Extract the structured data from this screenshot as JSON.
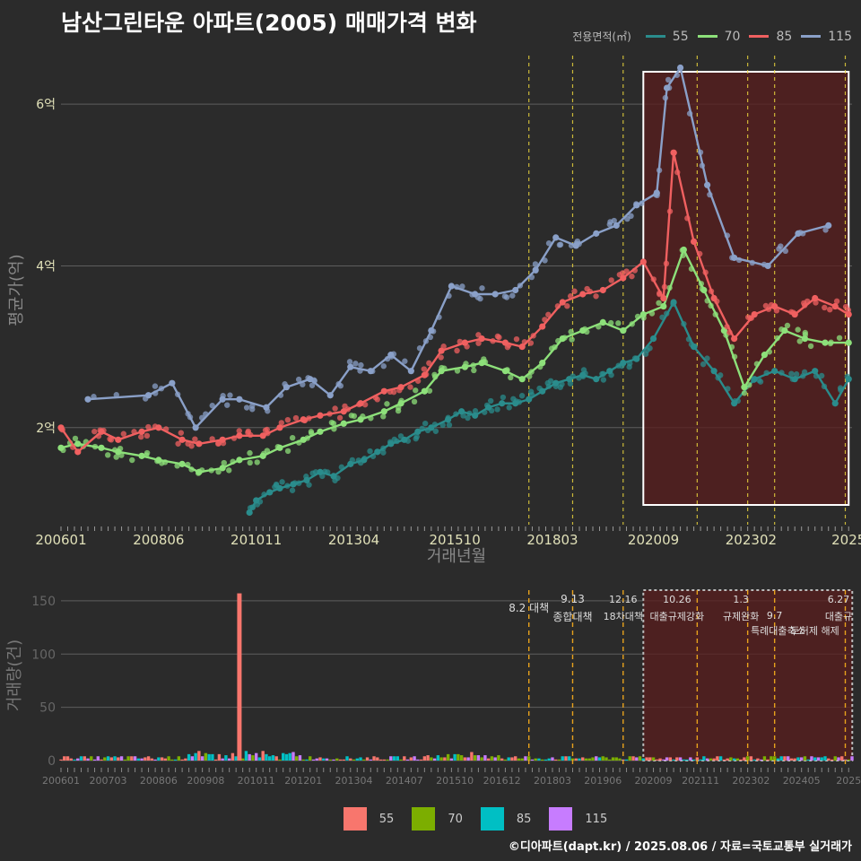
{
  "title": "남산그린타운 아파트(2005) 매매가격 변화",
  "footer": "©디아파트(dapt.kr) / 2025.08.06 / 자료=국토교통부 실거래가",
  "colors": {
    "background": "#2b2b2b",
    "grid": "#5e5e5e",
    "s55": "#2a8c8c",
    "s70": "#8de07a",
    "s85": "#f06060",
    "s115": "#8aa0c8",
    "bar55": "#f8766d",
    "bar70": "#7cae00",
    "bar85": "#00bfc4",
    "bar115": "#c77cff",
    "highlight": "#5a1e1e",
    "policy_line": "#e8d23c"
  },
  "legend_top": {
    "title": "전용면적(㎡)",
    "items": [
      "55",
      "70",
      "85",
      "115"
    ]
  },
  "legend_bottom": {
    "items": [
      "55",
      "70",
      "85",
      "115"
    ]
  },
  "chart_data": [
    {
      "type": "line",
      "xlabel": "거래년월",
      "ylabel": "평균가(억)",
      "x_ticks": [
        "200601",
        "200806",
        "201011",
        "201304",
        "201510",
        "201803",
        "202009",
        "202302",
        "2025"
      ],
      "y_ticks": [
        "2억",
        "4억",
        "6억"
      ],
      "ylim": [
        0.8,
        6.6
      ],
      "xlim": [
        "2006-01",
        "2025-08"
      ],
      "highlight_range": [
        "2020-06",
        "2025-07"
      ],
      "series": [
        {
          "name": "55",
          "x": [
            "2010-09",
            "2010-11",
            "2011-03",
            "2011-06",
            "2011-10",
            "2012-02",
            "2012-06",
            "2012-10",
            "2013-03",
            "2013-07",
            "2013-11",
            "2014-03",
            "2014-07",
            "2014-11",
            "2015-03",
            "2015-08",
            "2015-12",
            "2016-04",
            "2016-08",
            "2016-12",
            "2017-04",
            "2017-08",
            "2017-12",
            "2018-04",
            "2018-08",
            "2018-12",
            "2019-04",
            "2019-08",
            "2019-12",
            "2020-04",
            "2020-09",
            "2021-03",
            "2021-09",
            "2022-03",
            "2022-09",
            "2023-03",
            "2023-09",
            "2024-03",
            "2024-09",
            "2025-03",
            "2025-07"
          ],
          "values": [
            0.95,
            1.1,
            1.2,
            1.25,
            1.3,
            1.35,
            1.45,
            1.4,
            1.55,
            1.6,
            1.7,
            1.8,
            1.85,
            1.95,
            2.0,
            2.1,
            2.2,
            2.15,
            2.25,
            2.3,
            2.3,
            2.35,
            2.45,
            2.55,
            2.6,
            2.65,
            2.6,
            2.7,
            2.8,
            2.85,
            3.1,
            3.55,
            3.0,
            2.7,
            2.3,
            2.6,
            2.7,
            2.6,
            2.7,
            2.3,
            2.6
          ]
        },
        {
          "name": "70",
          "x": [
            "2006-01",
            "2006-06",
            "2007-01",
            "2007-06",
            "2008-01",
            "2008-06",
            "2009-01",
            "2009-06",
            "2010-01",
            "2010-06",
            "2011-01",
            "2011-06",
            "2012-01",
            "2012-06",
            "2013-01",
            "2013-06",
            "2014-01",
            "2014-06",
            "2015-01",
            "2015-06",
            "2016-01",
            "2016-06",
            "2017-01",
            "2017-06",
            "2017-12",
            "2018-06",
            "2018-12",
            "2019-06",
            "2019-12",
            "2020-06",
            "2020-12",
            "2021-06",
            "2021-12",
            "2022-06",
            "2022-12",
            "2023-06",
            "2023-12",
            "2024-06",
            "2024-12",
            "2025-07"
          ],
          "values": [
            1.75,
            1.8,
            1.75,
            1.7,
            1.65,
            1.6,
            1.55,
            1.45,
            1.5,
            1.6,
            1.65,
            1.75,
            1.85,
            1.95,
            2.05,
            2.1,
            2.2,
            2.3,
            2.45,
            2.7,
            2.75,
            2.8,
            2.7,
            2.6,
            2.8,
            3.1,
            3.2,
            3.3,
            3.2,
            3.4,
            3.5,
            4.2,
            3.7,
            3.2,
            2.5,
            2.9,
            3.2,
            3.1,
            3.05,
            3.05
          ]
        },
        {
          "name": "85",
          "x": [
            "2006-01",
            "2006-06",
            "2007-01",
            "2007-06",
            "2008-01",
            "2008-06",
            "2009-01",
            "2009-06",
            "2010-01",
            "2010-06",
            "2011-01",
            "2011-06",
            "2012-01",
            "2012-06",
            "2013-01",
            "2013-06",
            "2014-01",
            "2014-06",
            "2015-01",
            "2015-06",
            "2016-01",
            "2016-06",
            "2017-01",
            "2017-06",
            "2017-12",
            "2018-06",
            "2018-12",
            "2019-06",
            "2019-12",
            "2020-06",
            "2020-12",
            "2021-03",
            "2021-09",
            "2022-03",
            "2022-09",
            "2023-03",
            "2023-09",
            "2024-03",
            "2024-09",
            "2025-03",
            "2025-07"
          ],
          "values": [
            2.0,
            1.7,
            1.95,
            1.85,
            1.95,
            2.0,
            1.85,
            1.8,
            1.85,
            1.9,
            1.9,
            2.0,
            2.1,
            2.15,
            2.2,
            2.3,
            2.45,
            2.5,
            2.65,
            2.95,
            3.05,
            3.1,
            3.05,
            3.0,
            3.25,
            3.55,
            3.65,
            3.7,
            3.85,
            4.05,
            3.6,
            5.4,
            4.3,
            3.6,
            3.1,
            3.4,
            3.5,
            3.4,
            3.6,
            3.5,
            3.4
          ]
        },
        {
          "name": "115",
          "x": [
            "2006-09",
            "2008-03",
            "2008-10",
            "2009-05",
            "2010-01",
            "2010-06",
            "2011-02",
            "2011-08",
            "2012-03",
            "2012-09",
            "2013-03",
            "2013-09",
            "2014-03",
            "2014-09",
            "2015-03",
            "2015-09",
            "2016-04",
            "2016-10",
            "2017-04",
            "2017-10",
            "2018-04",
            "2018-10",
            "2019-04",
            "2019-10",
            "2020-04",
            "2020-10",
            "2021-01",
            "2021-05",
            "2022-01",
            "2022-09",
            "2023-07",
            "2024-04",
            "2025-01"
          ],
          "values": [
            2.35,
            2.4,
            2.55,
            2.0,
            2.35,
            2.35,
            2.25,
            2.5,
            2.6,
            2.4,
            2.75,
            2.7,
            2.9,
            2.7,
            3.2,
            3.75,
            3.65,
            3.65,
            3.7,
            3.95,
            4.35,
            4.25,
            4.4,
            4.5,
            4.75,
            4.9,
            6.2,
            6.45,
            5.0,
            4.1,
            4.0,
            4.4,
            4.5
          ]
        }
      ]
    },
    {
      "type": "bar",
      "xlabel": "",
      "ylabel": "거래량(건)",
      "x_ticks": [
        "200601",
        "200703",
        "200806",
        "200908",
        "201011",
        "201201",
        "201304",
        "201407",
        "201510",
        "201612",
        "201803",
        "201906",
        "202009",
        "202111",
        "202302",
        "202405",
        "2025"
      ],
      "y_ticks": [
        "0",
        "50",
        "100",
        "150"
      ],
      "ylim": [
        0,
        160
      ],
      "spike": {
        "x": "2010-06",
        "value": 157
      },
      "policy_events": [
        {
          "date": "2017-08",
          "label": "8.2 대책",
          "position": "lower"
        },
        {
          "date": "2018-09",
          "label": "9.13 종합대책",
          "position": "upper"
        },
        {
          "date": "2019-12",
          "label": "12.16 18차대책",
          "position": "upper"
        },
        {
          "date": "2021-10",
          "label": "10.26 대출규제강화",
          "position": "upper"
        },
        {
          "date": "2023-01",
          "label": "1.3 규제완화",
          "position": "upper"
        },
        {
          "date": "2023-09",
          "label": "9.7 특례대출축소",
          "position": "lower"
        },
        {
          "date": "2025-06",
          "label": "6.27 대출규제",
          "position": "upper"
        }
      ],
      "annotation_labels": [
        "8.2 대책",
        "9.13",
        "종합대책",
        "12.16",
        "18차대책",
        "10.26",
        "대출규제강화",
        "1.3",
        "규제완화",
        "9.7",
        "특례대출축소",
        "토허제 해제",
        "6.27",
        "대출규"
      ]
    }
  ]
}
